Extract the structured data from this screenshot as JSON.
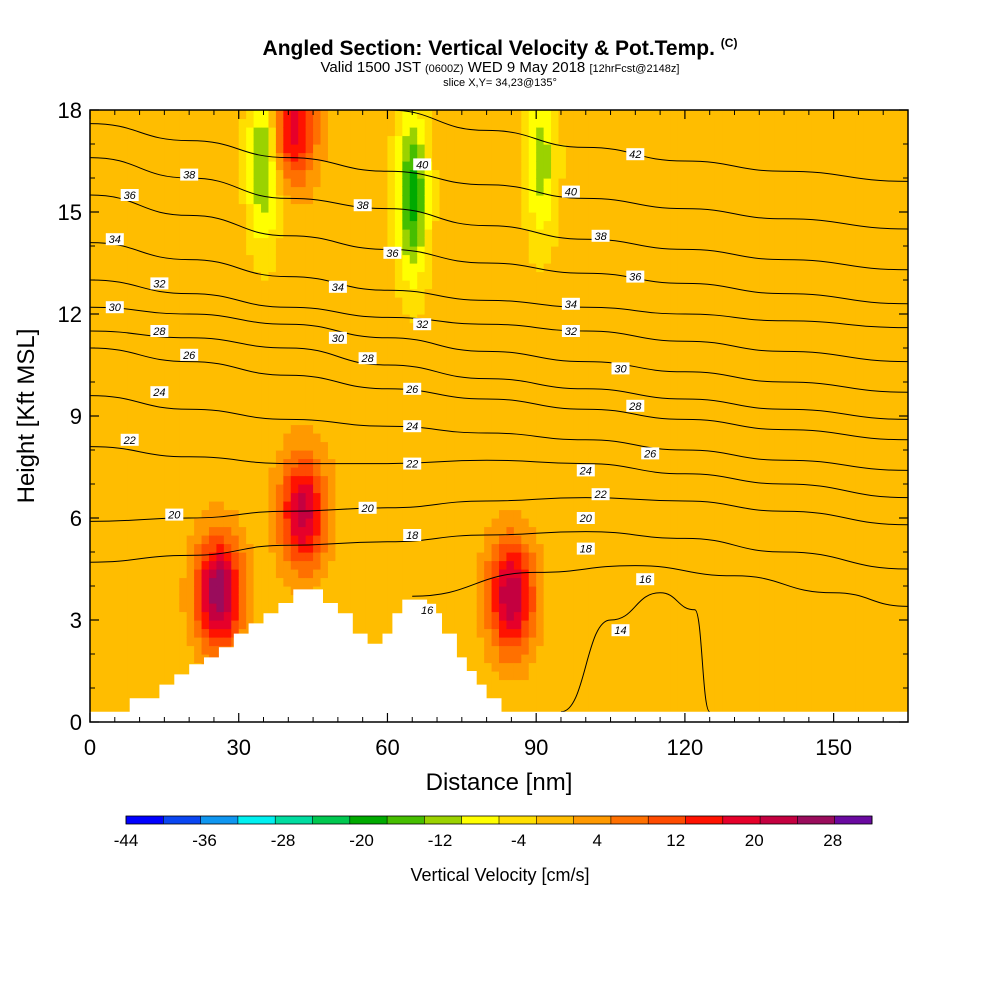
{
  "header": {
    "title_main": "Angled Section: Vertical Velocity & Pot.Temp.",
    "title_unit": "(C)",
    "valid_prefix": "Valid 1500 JST",
    "valid_utc": "(0600Z)",
    "valid_date": "WED 9 May 2018",
    "valid_fcst": "[12hrFcst@2148z]",
    "slice": "slice X,Y= 34,23@135°"
  },
  "chart_data": {
    "type": "contour",
    "title": "Angled Section: Vertical Velocity & Pot.Temp. (C)",
    "xlabel": "Distance [nm]",
    "ylabel": "Height [Kft MSL]",
    "xlim": [
      0,
      165
    ],
    "ylim": [
      0,
      18
    ],
    "x_ticks": [
      "0",
      "30",
      "60",
      "90",
      "120",
      "150"
    ],
    "x_tick_values": [
      0,
      30,
      60,
      90,
      120,
      150
    ],
    "y_ticks": [
      "0",
      "3",
      "6",
      "9",
      "12",
      "15",
      "18"
    ],
    "y_tick_values": [
      0,
      3,
      6,
      9,
      12,
      15,
      18
    ],
    "colorbar": {
      "title": "Vertical Velocity [cm/s]",
      "labels": [
        "-44",
        "-36",
        "-28",
        "-20",
        "-12",
        "-4",
        "4",
        "12",
        "20",
        "28"
      ],
      "min": -44,
      "max": 32,
      "step": 4,
      "colors": [
        "#0000ff",
        "#0a46f2",
        "#0f96f0",
        "#00f0f0",
        "#00dca0",
        "#00c850",
        "#00aa00",
        "#46be00",
        "#9bd200",
        "#ffff00",
        "#ffdf00",
        "#ffbd00",
        "#ff9900",
        "#ff7000",
        "#ff4b00",
        "#ff1200",
        "#e6002a",
        "#c40040",
        "#9a0c5c",
        "#6a0aa0"
      ]
    },
    "background_velocity_cm_s": 2,
    "velocity_cores": [
      {
        "x": 26,
        "z": 3.8,
        "w_max": 30,
        "sign": "updraft"
      },
      {
        "x": 43,
        "z": 6.2,
        "w_max": 24,
        "sign": "updraft"
      },
      {
        "x": 85,
        "z": 3.7,
        "w_max": 26,
        "sign": "updraft"
      },
      {
        "x": 41,
        "z": 17.5,
        "w_max": 20,
        "sign": "updraft"
      },
      {
        "x": 65,
        "z": 15.5,
        "w_max": -20,
        "sign": "downdraft"
      },
      {
        "x": 35,
        "z": 16.5,
        "w_max": -16,
        "sign": "downdraft"
      },
      {
        "x": 91,
        "z": 16.5,
        "w_max": -12,
        "sign": "downdraft"
      }
    ],
    "potential_temperature_labels_C": [
      "14",
      "16",
      "18",
      "20",
      "22",
      "24",
      "26",
      "28",
      "30",
      "32",
      "34",
      "36",
      "38",
      "40",
      "42"
    ],
    "potential_temperature_isolines": [
      {
        "value": 14,
        "x": [
          95,
          105,
          115,
          122,
          125
        ],
        "z": [
          0.3,
          3.0,
          3.8,
          3.3,
          0.3
        ]
      },
      {
        "value": 16,
        "x": [
          65,
          90,
          110,
          130,
          150,
          165
        ],
        "z": [
          3.7,
          4.4,
          4.6,
          4.3,
          3.8,
          3.4
        ]
      },
      {
        "value": 18,
        "x": [
          0,
          20,
          40,
          60,
          80,
          100,
          120,
          140,
          165
        ],
        "z": [
          4.7,
          4.9,
          5.2,
          5.3,
          5.5,
          5.6,
          5.4,
          5.0,
          4.5
        ]
      },
      {
        "value": 20,
        "x": [
          0,
          20,
          40,
          60,
          80,
          100,
          120,
          140,
          165
        ],
        "z": [
          5.9,
          6.0,
          6.2,
          6.3,
          6.5,
          6.6,
          6.5,
          6.2,
          5.8
        ]
      },
      {
        "value": 22,
        "x": [
          0,
          20,
          40,
          60,
          80,
          100,
          120,
          140,
          165
        ],
        "z": [
          8.1,
          7.8,
          7.6,
          7.6,
          7.7,
          7.6,
          7.3,
          7.0,
          6.6
        ]
      },
      {
        "value": 24,
        "x": [
          0,
          20,
          40,
          60,
          80,
          100,
          120,
          140,
          165
        ],
        "z": [
          9.6,
          9.2,
          8.9,
          8.7,
          8.5,
          8.3,
          8.0,
          7.7,
          7.4
        ]
      },
      {
        "value": 26,
        "x": [
          0,
          20,
          40,
          60,
          80,
          100,
          120,
          140,
          165
        ],
        "z": [
          11.0,
          10.6,
          10.2,
          9.8,
          9.5,
          9.2,
          8.9,
          8.6,
          8.3
        ]
      },
      {
        "value": 28,
        "x": [
          0,
          20,
          40,
          60,
          80,
          100,
          120,
          140,
          165
        ],
        "z": [
          11.5,
          11.3,
          11.0,
          10.5,
          10.1,
          9.8,
          9.5,
          9.2,
          8.9
        ]
      },
      {
        "value": 30,
        "x": [
          0,
          20,
          40,
          60,
          80,
          100,
          120,
          140,
          165
        ],
        "z": [
          12.2,
          12.0,
          11.7,
          11.3,
          10.9,
          10.6,
          10.3,
          10.0,
          9.7
        ]
      },
      {
        "value": 32,
        "x": [
          0,
          20,
          40,
          60,
          80,
          100,
          120,
          140,
          165
        ],
        "z": [
          13.0,
          12.6,
          12.2,
          11.9,
          11.7,
          11.5,
          11.2,
          10.9,
          10.6
        ]
      },
      {
        "value": 34,
        "x": [
          0,
          20,
          40,
          60,
          80,
          100,
          120,
          140,
          165
        ],
        "z": [
          14.1,
          13.6,
          13.1,
          12.7,
          12.4,
          12.2,
          12.0,
          11.8,
          11.6
        ]
      },
      {
        "value": 36,
        "x": [
          0,
          20,
          40,
          60,
          80,
          100,
          120,
          140,
          165
        ],
        "z": [
          15.5,
          14.9,
          14.3,
          13.9,
          13.5,
          13.2,
          12.9,
          12.6,
          12.3
        ]
      },
      {
        "value": 38,
        "x": [
          0,
          20,
          40,
          60,
          80,
          100,
          120,
          140,
          165
        ],
        "z": [
          16.6,
          16.0,
          15.4,
          15.1,
          14.6,
          14.2,
          13.9,
          13.6,
          13.3
        ]
      },
      {
        "value": 40,
        "x": [
          0,
          20,
          40,
          60,
          80,
          100,
          120,
          140,
          165
        ],
        "z": [
          17.6,
          17.1,
          16.6,
          16.2,
          15.8,
          15.4,
          15.1,
          14.8,
          14.5
        ]
      },
      {
        "value": 42,
        "x": [
          60,
          80,
          100,
          120,
          140,
          165
        ],
        "z": [
          18.0,
          17.4,
          16.9,
          16.5,
          16.2,
          15.9
        ]
      }
    ],
    "contour_label_positions": [
      {
        "label": "38",
        "x": 20,
        "z": 16.1
      },
      {
        "label": "36",
        "x": 8,
        "z": 15.5
      },
      {
        "label": "34",
        "x": 5,
        "z": 14.2
      },
      {
        "label": "32",
        "x": 14,
        "z": 12.9
      },
      {
        "label": "30",
        "x": 5,
        "z": 12.2
      },
      {
        "label": "28",
        "x": 14,
        "z": 11.5
      },
      {
        "label": "26",
        "x": 20,
        "z": 10.8
      },
      {
        "label": "24",
        "x": 14,
        "z": 9.7
      },
      {
        "label": "22",
        "x": 8,
        "z": 8.3
      },
      {
        "label": "20",
        "x": 17,
        "z": 6.1
      },
      {
        "label": "40",
        "x": 67,
        "z": 16.4
      },
      {
        "label": "38",
        "x": 55,
        "z": 15.2
      },
      {
        "label": "36",
        "x": 61,
        "z": 13.8
      },
      {
        "label": "34",
        "x": 50,
        "z": 12.8
      },
      {
        "label": "32",
        "x": 67,
        "z": 11.7
      },
      {
        "label": "30",
        "x": 50,
        "z": 11.3
      },
      {
        "label": "28",
        "x": 56,
        "z": 10.7
      },
      {
        "label": "26",
        "x": 65,
        "z": 9.8
      },
      {
        "label": "24",
        "x": 65,
        "z": 8.7
      },
      {
        "label": "22",
        "x": 65,
        "z": 7.6
      },
      {
        "label": "20",
        "x": 56,
        "z": 6.3
      },
      {
        "label": "18",
        "x": 65,
        "z": 5.5
      },
      {
        "label": "16",
        "x": 68,
        "z": 3.3
      },
      {
        "label": "42",
        "x": 110,
        "z": 16.7
      },
      {
        "label": "40",
        "x": 97,
        "z": 15.6
      },
      {
        "label": "38",
        "x": 103,
        "z": 14.3
      },
      {
        "label": "36",
        "x": 110,
        "z": 13.1
      },
      {
        "label": "34",
        "x": 97,
        "z": 12.3
      },
      {
        "label": "32",
        "x": 97,
        "z": 11.5
      },
      {
        "label": "30",
        "x": 107,
        "z": 10.4
      },
      {
        "label": "28",
        "x": 110,
        "z": 9.3
      },
      {
        "label": "26",
        "x": 113,
        "z": 7.9
      },
      {
        "label": "24",
        "x": 100,
        "z": 7.4
      },
      {
        "label": "22",
        "x": 103,
        "z": 6.7
      },
      {
        "label": "20",
        "x": 100,
        "z": 6.0
      },
      {
        "label": "18",
        "x": 100,
        "z": 5.1
      },
      {
        "label": "16",
        "x": 112,
        "z": 4.2
      },
      {
        "label": "14",
        "x": 107,
        "z": 2.7
      }
    ],
    "terrain_profile": {
      "x": [
        0,
        8,
        8,
        14,
        14,
        17,
        17,
        20,
        20,
        23,
        23,
        26,
        26,
        29,
        29,
        32,
        32,
        35,
        35,
        38,
        38,
        41,
        41,
        44,
        44,
        47,
        47,
        50,
        50,
        53,
        53,
        56,
        56,
        59,
        59,
        61,
        61,
        63,
        63,
        66,
        66,
        68,
        68,
        71,
        71,
        74,
        74,
        76,
        76,
        78,
        78,
        80,
        80,
        83,
        83,
        165
      ],
      "z": [
        0.3,
        0.3,
        0.7,
        0.7,
        1.1,
        1.1,
        1.4,
        1.4,
        1.7,
        1.7,
        1.9,
        1.9,
        2.2,
        2.2,
        2.6,
        2.6,
        2.9,
        2.9,
        3.2,
        3.2,
        3.5,
        3.5,
        3.9,
        3.9,
        3.9,
        3.9,
        3.5,
        3.5,
        3.2,
        3.2,
        2.6,
        2.6,
        2.3,
        2.3,
        2.6,
        2.6,
        3.2,
        3.2,
        3.6,
        3.6,
        3.6,
        3.6,
        3.2,
        3.2,
        2.6,
        2.6,
        1.9,
        1.9,
        1.5,
        1.5,
        1.1,
        1.1,
        0.7,
        0.7,
        0.3,
        0.3
      ]
    }
  }
}
